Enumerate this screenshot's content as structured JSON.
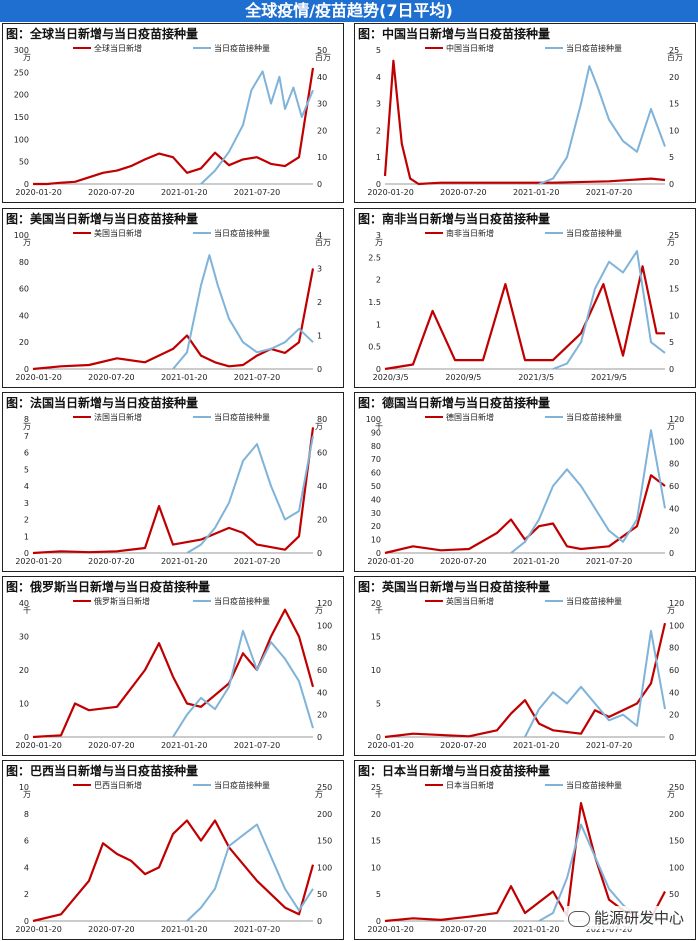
{
  "header": {
    "title": "全球疫情/疫苗趋势(7日平均)"
  },
  "watermark": {
    "text": "能源研发中心",
    "icon": "wechat-icon"
  },
  "colors": {
    "red": "#c00000",
    "blue": "#7fb3d9"
  },
  "chart_data": [
    {
      "type": "line",
      "title": "图：全球当日新增与当日疫苗接种量",
      "left_unit": "万",
      "right_unit": "百万",
      "xticks": [
        "2020-01-20",
        "2020-07-20",
        "2021-01-20",
        "2021-07-20"
      ],
      "left_ylim": [
        0,
        300
      ],
      "left_ticks": [
        0,
        50,
        100,
        150,
        200,
        250,
        300
      ],
      "right_ylim": [
        0,
        50
      ],
      "right_ticks": [
        0,
        10,
        20,
        30,
        40,
        50
      ],
      "series": [
        {
          "name": "全球当日新增",
          "axis": "left",
          "color": "#c00000",
          "x": [
            0,
            0.05,
            0.1,
            0.15,
            0.2,
            0.25,
            0.3,
            0.35,
            0.4,
            0.45,
            0.5,
            0.55,
            0.6,
            0.65,
            0.7,
            0.75,
            0.8,
            0.85,
            0.9,
            0.95,
            1
          ],
          "values": [
            0,
            0,
            3,
            5,
            15,
            25,
            30,
            40,
            55,
            68,
            60,
            25,
            35,
            70,
            42,
            55,
            60,
            45,
            40,
            60,
            260
          ]
        },
        {
          "name": "当日疫苗接种量",
          "axis": "right",
          "color": "#7fb3d9",
          "x": [
            0.6,
            0.65,
            0.7,
            0.75,
            0.78,
            0.82,
            0.85,
            0.88,
            0.9,
            0.93,
            0.96,
            1
          ],
          "values": [
            0,
            5,
            12,
            22,
            35,
            42,
            30,
            40,
            28,
            36,
            25,
            35
          ]
        }
      ]
    },
    {
      "type": "line",
      "title": "图：中国当日新增与当日疫苗接种量",
      "left_unit": "",
      "right_unit": "百万",
      "xticks": [
        "2020-01-20",
        "2020-07-20",
        "2021-01-20",
        "2021-07-20"
      ],
      "left_ylim": [
        0,
        5
      ],
      "left_ticks": [
        0,
        1,
        2,
        3,
        4,
        5
      ],
      "right_ylim": [
        0,
        25
      ],
      "right_ticks": [
        0,
        5,
        10,
        15,
        20,
        25
      ],
      "series": [
        {
          "name": "中国当日新增",
          "axis": "left",
          "color": "#c00000",
          "x": [
            0,
            0.03,
            0.06,
            0.09,
            0.12,
            0.2,
            0.4,
            0.6,
            0.8,
            0.95,
            1
          ],
          "values": [
            0.3,
            4.6,
            1.5,
            0.2,
            0,
            0.05,
            0.05,
            0.05,
            0.1,
            0.2,
            0.15
          ]
        },
        {
          "name": "当日疫苗接种量",
          "axis": "right",
          "color": "#7fb3d9",
          "x": [
            0.55,
            0.6,
            0.65,
            0.7,
            0.73,
            0.76,
            0.8,
            0.85,
            0.9,
            0.95,
            1
          ],
          "values": [
            0,
            1,
            5,
            15,
            22,
            18,
            12,
            8,
            6,
            14,
            7
          ]
        }
      ]
    },
    {
      "type": "line",
      "title": "图：美国当日新增与当日疫苗接种量",
      "left_unit": "万",
      "right_unit": "百万",
      "xticks": [
        "2020-01-20",
        "2020-07-20",
        "2021-01-20",
        "2021-07-20"
      ],
      "left_ylim": [
        0,
        100
      ],
      "left_ticks": [
        0,
        20,
        40,
        60,
        80,
        100
      ],
      "right_ylim": [
        0,
        4
      ],
      "right_ticks": [
        0,
        1,
        2,
        3,
        4
      ],
      "series": [
        {
          "name": "美国当日新增",
          "axis": "left",
          "color": "#c00000",
          "x": [
            0,
            0.1,
            0.2,
            0.3,
            0.4,
            0.5,
            0.55,
            0.6,
            0.65,
            0.7,
            0.75,
            0.8,
            0.85,
            0.9,
            0.95,
            1
          ],
          "values": [
            0,
            2,
            3,
            8,
            5,
            15,
            25,
            10,
            5,
            2,
            3,
            10,
            15,
            12,
            20,
            75
          ]
        },
        {
          "name": "当日疫苗接种量",
          "axis": "right",
          "color": "#7fb3d9",
          "x": [
            0.5,
            0.55,
            0.6,
            0.63,
            0.66,
            0.7,
            0.75,
            0.8,
            0.85,
            0.9,
            0.95,
            1
          ],
          "values": [
            0,
            0.5,
            2.5,
            3.4,
            2.5,
            1.5,
            0.8,
            0.5,
            0.6,
            0.8,
            1.2,
            0.8
          ]
        }
      ]
    },
    {
      "type": "line",
      "title": "图：南非当日新增与当日疫苗接种量",
      "left_unit": "万",
      "right_unit": "万",
      "xticks": [
        "2020/3/5",
        "2020/9/5",
        "2021/3/5",
        "2021/9/5"
      ],
      "left_ylim": [
        0,
        3
      ],
      "left_ticks": [
        0,
        0.5,
        1,
        1.5,
        2,
        2.5,
        3
      ],
      "right_ylim": [
        0,
        25
      ],
      "right_ticks": [
        0,
        5,
        10,
        15,
        20,
        25
      ],
      "series": [
        {
          "name": "南非当日新增",
          "axis": "left",
          "color": "#c00000",
          "x": [
            0,
            0.1,
            0.17,
            0.25,
            0.35,
            0.43,
            0.5,
            0.6,
            0.7,
            0.78,
            0.85,
            0.92,
            0.97,
            1
          ],
          "values": [
            0,
            0.1,
            1.3,
            0.2,
            0.2,
            1.9,
            0.2,
            0.2,
            0.8,
            1.9,
            0.3,
            2.3,
            0.8,
            0.8
          ]
        },
        {
          "name": "当日疫苗接种量",
          "axis": "right",
          "color": "#7fb3d9",
          "x": [
            0.6,
            0.65,
            0.7,
            0.75,
            0.8,
            0.85,
            0.9,
            0.95,
            1
          ],
          "values": [
            0,
            1,
            5,
            15,
            20,
            18,
            22,
            5,
            3
          ]
        }
      ]
    },
    {
      "type": "line",
      "title": "图：法国当日新增与当日疫苗接种量",
      "left_unit": "万",
      "right_unit": "万",
      "xticks": [
        "2020-01-20",
        "2020-07-20",
        "2021-01-20",
        "2021-07-20"
      ],
      "left_ylim": [
        0,
        8
      ],
      "left_ticks": [
        0,
        1,
        2,
        3,
        4,
        5,
        6,
        7,
        8
      ],
      "right_ylim": [
        0,
        80
      ],
      "right_ticks": [
        0,
        20,
        40,
        60,
        80
      ],
      "series": [
        {
          "name": "法国当日新增",
          "axis": "left",
          "color": "#c00000",
          "x": [
            0,
            0.1,
            0.2,
            0.3,
            0.4,
            0.45,
            0.5,
            0.6,
            0.7,
            0.75,
            0.8,
            0.9,
            0.95,
            1
          ],
          "values": [
            0,
            0.1,
            0.05,
            0.1,
            0.3,
            2.8,
            0.5,
            0.8,
            1.5,
            1.2,
            0.5,
            0.2,
            1.0,
            7.5
          ]
        },
        {
          "name": "当日疫苗接种量",
          "axis": "right",
          "color": "#7fb3d9",
          "x": [
            0.55,
            0.6,
            0.65,
            0.7,
            0.75,
            0.8,
            0.85,
            0.9,
            0.95,
            1
          ],
          "values": [
            0,
            5,
            15,
            30,
            55,
            65,
            40,
            20,
            25,
            70
          ]
        }
      ]
    },
    {
      "type": "line",
      "title": "图：德国当日新增与当日疫苗接种量",
      "left_unit": "千",
      "right_unit": "万",
      "xticks": [
        "2020-01-20",
        "2020-07-20",
        "2021-01-20",
        "2021-07-20"
      ],
      "left_ylim": [
        0,
        100
      ],
      "left_ticks": [
        0,
        10,
        20,
        30,
        40,
        50,
        60,
        70,
        80,
        90,
        100
      ],
      "right_ylim": [
        0,
        120
      ],
      "right_ticks": [
        0,
        20,
        40,
        60,
        80,
        100,
        120
      ],
      "series": [
        {
          "name": "德国当日新增",
          "axis": "left",
          "color": "#c00000",
          "x": [
            0,
            0.1,
            0.2,
            0.3,
            0.4,
            0.45,
            0.5,
            0.55,
            0.6,
            0.65,
            0.7,
            0.8,
            0.9,
            0.95,
            1
          ],
          "values": [
            0,
            5,
            2,
            3,
            15,
            25,
            10,
            20,
            22,
            5,
            3,
            5,
            20,
            58,
            50
          ]
        },
        {
          "name": "当日疫苗接种量",
          "axis": "right",
          "color": "#7fb3d9",
          "x": [
            0.45,
            0.5,
            0.55,
            0.6,
            0.65,
            0.7,
            0.75,
            0.8,
            0.85,
            0.9,
            0.95,
            1
          ],
          "values": [
            0,
            10,
            30,
            60,
            75,
            60,
            40,
            20,
            10,
            30,
            110,
            40
          ]
        }
      ]
    },
    {
      "type": "line",
      "title": "图：俄罗斯当日新增与当日疫苗接种量",
      "left_unit": "千",
      "right_unit": "万",
      "xticks": [
        "2020-01-20",
        "2020-07-20",
        "2021-01-20",
        "2021-07-20"
      ],
      "left_ylim": [
        0,
        40
      ],
      "left_ticks": [
        0,
        10,
        20,
        30,
        40
      ],
      "right_ylim": [
        0,
        120
      ],
      "right_ticks": [
        0,
        20,
        40,
        60,
        80,
        100,
        120
      ],
      "series": [
        {
          "name": "俄罗斯当日新增",
          "axis": "left",
          "color": "#c00000",
          "x": [
            0,
            0.1,
            0.15,
            0.2,
            0.3,
            0.4,
            0.45,
            0.5,
            0.55,
            0.6,
            0.7,
            0.75,
            0.8,
            0.85,
            0.9,
            0.95,
            1
          ],
          "values": [
            0,
            0.5,
            10,
            8,
            9,
            20,
            28,
            18,
            10,
            9,
            16,
            25,
            20,
            30,
            38,
            30,
            15
          ]
        },
        {
          "name": "当日疫苗接种量",
          "axis": "right",
          "color": "#7fb3d9",
          "x": [
            0.5,
            0.55,
            0.6,
            0.65,
            0.7,
            0.75,
            0.8,
            0.85,
            0.9,
            0.95,
            1
          ],
          "values": [
            0,
            20,
            35,
            25,
            45,
            95,
            60,
            85,
            70,
            50,
            8
          ]
        }
      ]
    },
    {
      "type": "line",
      "title": "图：英国当日新增与当日疫苗接种量",
      "left_unit": "千",
      "right_unit": "万",
      "xticks": [
        "2020-01-20",
        "2020-07-20",
        "2021-01-20",
        "2021-07-20"
      ],
      "left_ylim": [
        0,
        20
      ],
      "left_ticks": [
        0,
        5,
        10,
        15,
        20
      ],
      "right_ylim": [
        0,
        120
      ],
      "right_ticks": [
        0,
        20,
        40,
        60,
        80,
        100,
        120
      ],
      "series": [
        {
          "name": "英国当日新增",
          "axis": "left",
          "color": "#c00000",
          "x": [
            0,
            0.1,
            0.3,
            0.4,
            0.45,
            0.5,
            0.55,
            0.6,
            0.7,
            0.75,
            0.8,
            0.85,
            0.9,
            0.95,
            1
          ],
          "values": [
            0,
            0.5,
            0.1,
            1.0,
            3.5,
            5.5,
            2.0,
            1.0,
            0.5,
            4.0,
            3.0,
            4.0,
            5.0,
            8.0,
            17.0
          ]
        },
        {
          "name": "当日疫苗接种量",
          "axis": "right",
          "color": "#7fb3d9",
          "x": [
            0.5,
            0.55,
            0.6,
            0.65,
            0.7,
            0.75,
            0.8,
            0.85,
            0.9,
            0.95,
            1
          ],
          "values": [
            0,
            25,
            40,
            30,
            45,
            30,
            15,
            20,
            10,
            95,
            25
          ]
        }
      ]
    },
    {
      "type": "line",
      "title": "图：巴西当日新增与当日疫苗接种量",
      "left_unit": "万",
      "right_unit": "万",
      "xticks": [
        "2020-01-20",
        "2020-07-20",
        "2021-01-20",
        "2021-07-20"
      ],
      "left_ylim": [
        0,
        10
      ],
      "left_ticks": [
        0,
        2,
        4,
        6,
        8,
        10
      ],
      "right_ylim": [
        0,
        250
      ],
      "right_ticks": [
        0,
        50,
        100,
        150,
        200,
        250
      ],
      "series": [
        {
          "name": "巴西当日新增",
          "axis": "left",
          "color": "#c00000",
          "x": [
            0,
            0.1,
            0.2,
            0.25,
            0.3,
            0.35,
            0.4,
            0.45,
            0.5,
            0.55,
            0.6,
            0.65,
            0.7,
            0.8,
            0.85,
            0.9,
            0.95,
            1
          ],
          "values": [
            0,
            0.5,
            3,
            5.8,
            5.0,
            4.5,
            3.5,
            4.0,
            6.5,
            7.5,
            6.0,
            7.5,
            5.5,
            3.0,
            2.0,
            1.0,
            0.5,
            4.2
          ]
        },
        {
          "name": "当日疫苗接种量",
          "axis": "right",
          "color": "#7fb3d9",
          "x": [
            0.55,
            0.6,
            0.65,
            0.7,
            0.75,
            0.8,
            0.85,
            0.9,
            0.95,
            1
          ],
          "values": [
            0,
            25,
            60,
            140,
            160,
            180,
            120,
            60,
            20,
            60
          ]
        }
      ]
    },
    {
      "type": "line",
      "title": "图：日本当日新增与当日疫苗接种量",
      "left_unit": "千",
      "right_unit": "万",
      "xticks": [
        "2020-01-20",
        "2020-07-20",
        "2021-01-20",
        "2021-07-20"
      ],
      "left_ylim": [
        0,
        25
      ],
      "left_ticks": [
        0,
        5,
        10,
        15,
        20,
        25
      ],
      "right_ylim": [
        0,
        250
      ],
      "right_ticks": [
        0,
        50,
        100,
        150,
        200,
        250
      ],
      "series": [
        {
          "name": "日本当日新增",
          "axis": "left",
          "color": "#c00000",
          "x": [
            0,
            0.1,
            0.2,
            0.3,
            0.4,
            0.45,
            0.5,
            0.55,
            0.6,
            0.65,
            0.7,
            0.75,
            0.8,
            0.85,
            0.9,
            0.95,
            1
          ],
          "values": [
            0,
            0.5,
            0.2,
            0.8,
            1.5,
            6.5,
            1.5,
            3.5,
            5.5,
            1.0,
            22,
            12,
            4,
            2,
            1,
            0.5,
            5.5
          ]
        },
        {
          "name": "当日疫苗接种量",
          "axis": "right",
          "color": "#7fb3d9",
          "x": [
            0.55,
            0.6,
            0.65,
            0.7,
            0.75,
            0.8,
            0.85,
            0.9,
            0.95,
            1
          ],
          "values": [
            0,
            15,
            80,
            180,
            120,
            60,
            30,
            10,
            5,
            5
          ]
        }
      ]
    }
  ]
}
